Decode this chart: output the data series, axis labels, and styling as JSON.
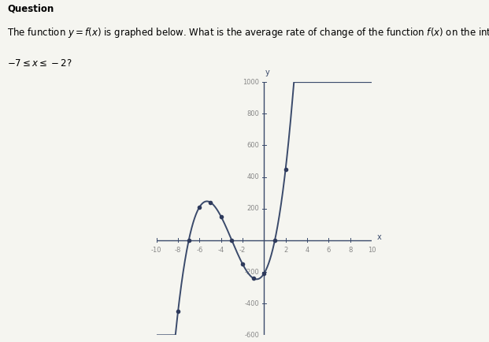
{
  "question_label": "Question",
  "question_text_line1": "The function y = f(x) is graphed below. What is the average rate of change of the function f(x) on the interval",
  "question_text_line2": "-7 ≤ x ≤ -2?",
  "curve_color": "#3a4a6b",
  "dot_color": "#2e3a5c",
  "axis_color": "#3a4a6b",
  "tick_color": "#3a4a6b",
  "label_color": "#888888",
  "background_color": "#f5f5f0",
  "graph_bg": "#f5f5f0",
  "xlim": [
    -10,
    10
  ],
  "ylim": [
    -600,
    1000
  ],
  "xtick_step": 2,
  "ytick_step": 200,
  "figsize": [
    6.21,
    4.34
  ],
  "dpi": 100,
  "poly_roots": [
    -7,
    -3,
    1
  ],
  "poly_scale": 10
}
